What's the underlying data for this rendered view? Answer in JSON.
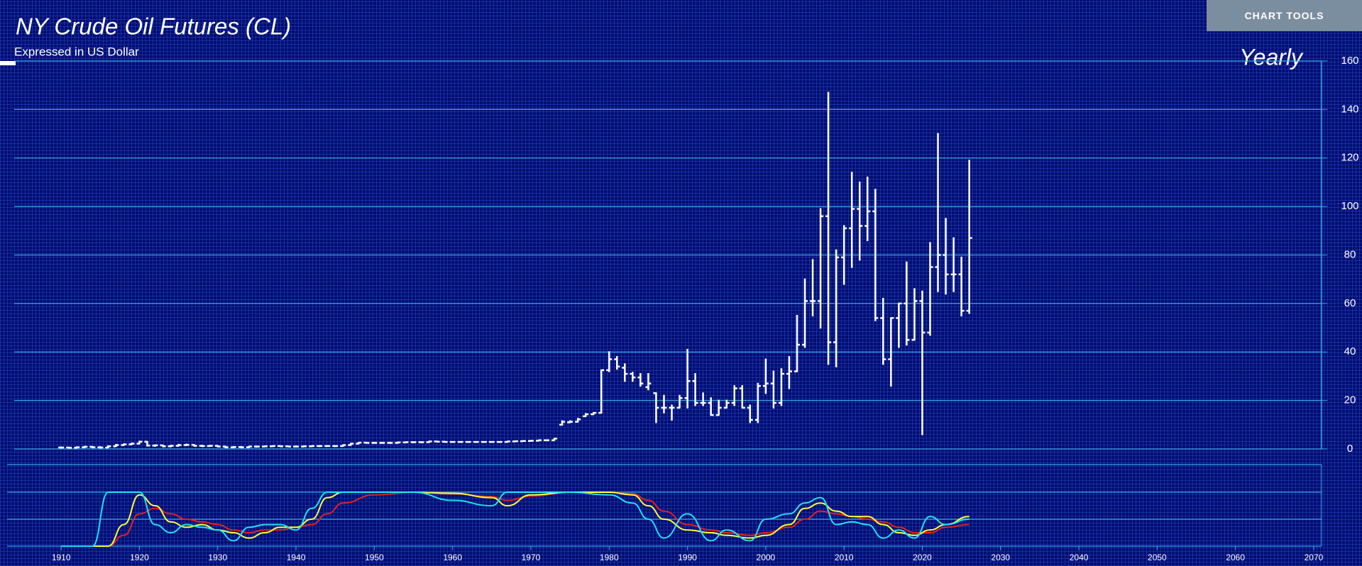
{
  "toolbar": {
    "button": "CHART TOOLS"
  },
  "chart_data": [
    {
      "type": "ohlc",
      "title": "NY Crude Oil Futures (CL)",
      "subtitle": "Expressed in US Dollar",
      "period": "Yearly",
      "color": "#ffffff",
      "x": [
        1910,
        1911,
        1912,
        1913,
        1914,
        1915,
        1916,
        1917,
        1918,
        1919,
        1920,
        1921,
        1922,
        1923,
        1924,
        1925,
        1926,
        1927,
        1928,
        1929,
        1930,
        1931,
        1932,
        1933,
        1934,
        1935,
        1936,
        1937,
        1938,
        1939,
        1940,
        1941,
        1942,
        1943,
        1944,
        1945,
        1946,
        1947,
        1948,
        1949,
        1950,
        1951,
        1952,
        1953,
        1954,
        1955,
        1956,
        1957,
        1958,
        1959,
        1960,
        1961,
        1962,
        1963,
        1964,
        1965,
        1966,
        1967,
        1968,
        1969,
        1970,
        1971,
        1972,
        1973,
        1974,
        1975,
        1976,
        1977,
        1978,
        1979,
        1980,
        1981,
        1982,
        1983,
        1984,
        1985,
        1986,
        1987,
        1988,
        1989,
        1990,
        1991,
        1992,
        1993,
        1994,
        1995,
        1996,
        1997,
        1998,
        1999,
        2000,
        2001,
        2002,
        2003,
        2004,
        2005,
        2006,
        2007,
        2008,
        2009,
        2010,
        2011,
        2012,
        2013,
        2014,
        2015,
        2016,
        2017,
        2018,
        2019,
        2020,
        2021,
        2022,
        2023,
        2024,
        2025,
        2026
      ],
      "open": [
        0.6,
        0.6,
        0.5,
        0.7,
        0.9,
        0.7,
        0.6,
        1.1,
        1.6,
        1.9,
        2.2,
        3,
        1.4,
        1.5,
        1.1,
        1.3,
        1.6,
        1.7,
        1.3,
        1.2,
        1.3,
        1,
        0.7,
        0.8,
        0.7,
        1,
        1,
        1.1,
        1.2,
        1.1,
        1,
        1,
        1.1,
        1.2,
        1.2,
        1.2,
        1.2,
        1.6,
        2.2,
        2.6,
        2.5,
        2.5,
        2.5,
        2.5,
        2.7,
        2.8,
        2.8,
        2.8,
        3.1,
        3,
        2.9,
        2.9,
        2.9,
        2.9,
        2.9,
        2.9,
        2.9,
        2.9,
        3.1,
        3.2,
        3.3,
        3.4,
        3.6,
        3.6,
        10,
        11,
        11.2,
        13.5,
        14.3,
        14.9,
        32.5,
        37,
        33.5,
        31,
        29.5,
        25.5,
        23,
        17,
        17,
        17,
        21,
        28,
        19,
        19,
        14,
        17,
        19,
        25,
        17,
        12,
        26,
        27,
        19,
        31,
        32,
        43,
        61,
        61,
        96,
        44,
        79,
        91,
        99,
        92,
        98,
        54,
        37,
        54,
        60,
        45,
        61,
        48,
        75,
        80,
        72,
        72,
        57
      ],
      "high": [
        0.7,
        0.6,
        0.8,
        1,
        0.9,
        0.8,
        1.2,
        1.8,
        2,
        2.3,
        3.1,
        3,
        1.6,
        1.5,
        1.4,
        1.8,
        1.9,
        1.7,
        1.4,
        1.4,
        1.3,
        1,
        0.9,
        0.9,
        1,
        1,
        1.1,
        1.2,
        1.2,
        1.1,
        1.1,
        1.2,
        1.2,
        1.2,
        1.2,
        1.2,
        1.6,
        2.2,
        2.6,
        2.6,
        2.6,
        2.6,
        2.6,
        2.7,
        2.8,
        2.8,
        2.8,
        3.1,
        3.1,
        3,
        2.9,
        2.9,
        2.9,
        2.9,
        2.9,
        2.9,
        2.9,
        3.1,
        3.2,
        3.3,
        3.4,
        3.6,
        3.6,
        4.3,
        11.5,
        11.5,
        12.5,
        14.5,
        14.9,
        32.5,
        40,
        38,
        35,
        31.5,
        31,
        31,
        23,
        22,
        18,
        22,
        41,
        31,
        23,
        21,
        20,
        20,
        26,
        26,
        18,
        27,
        37,
        32,
        33,
        38,
        55,
        70,
        78,
        99,
        147,
        82,
        92,
        114,
        110,
        112,
        107,
        62,
        54,
        60,
        77,
        66,
        65,
        85,
        130,
        95,
        87,
        79,
        119
      ],
      "low": [
        0.5,
        0.5,
        0.5,
        0.7,
        0.6,
        0.5,
        0.6,
        1.1,
        1.6,
        1.9,
        2.2,
        1.3,
        1.2,
        1,
        1,
        1.3,
        1.5,
        1.2,
        1.1,
        1.2,
        1,
        0.6,
        0.6,
        0.6,
        0.7,
        0.9,
        1,
        1.1,
        1.1,
        1,
        1,
        1,
        1.1,
        1.1,
        1.2,
        1.1,
        1.2,
        1.6,
        2.2,
        2.5,
        2.5,
        2.5,
        2.5,
        2.5,
        2.7,
        2.7,
        2.7,
        2.8,
        3,
        2.9,
        2.9,
        2.9,
        2.9,
        2.9,
        2.9,
        2.9,
        2.9,
        2.9,
        3.1,
        3.2,
        3.3,
        3.4,
        3.6,
        3.6,
        10,
        11,
        11.2,
        13.5,
        14.3,
        14.9,
        32,
        33,
        28,
        28,
        26,
        24.5,
        11,
        15,
        12,
        17,
        17,
        18,
        18,
        14,
        14,
        17,
        18,
        17,
        11,
        11,
        23,
        17,
        18,
        25,
        32,
        42,
        55,
        50,
        35,
        34,
        68,
        75,
        78,
        86,
        53,
        35,
        26,
        42,
        43,
        45,
        6,
        47,
        65,
        64,
        65,
        55,
        56
      ],
      "close": [
        0.6,
        0.5,
        0.7,
        0.9,
        0.7,
        0.6,
        1.1,
        1.6,
        1.9,
        2.2,
        3,
        1.4,
        1.5,
        1.1,
        1.3,
        1.6,
        1.7,
        1.3,
        1.2,
        1.3,
        1,
        0.7,
        0.8,
        0.7,
        1,
        1,
        1.1,
        1.2,
        1.1,
        1,
        1,
        1.1,
        1.2,
        1.2,
        1.2,
        1.2,
        1.6,
        2.2,
        2.6,
        2.5,
        2.5,
        2.5,
        2.5,
        2.7,
        2.8,
        2.8,
        2.8,
        3.1,
        3,
        2.9,
        2.9,
        2.9,
        2.9,
        2.9,
        2.9,
        2.9,
        2.9,
        3.1,
        3.2,
        3.3,
        3.4,
        3.6,
        3.6,
        4.3,
        11.2,
        11.2,
        12.2,
        14.3,
        14.9,
        32.5,
        37,
        34,
        31,
        29.5,
        27,
        27,
        17,
        17,
        17,
        21,
        28,
        19,
        19,
        14,
        17,
        19,
        25,
        17,
        12,
        26,
        27,
        19,
        31,
        32,
        43,
        61,
        61,
        96,
        44,
        79,
        91,
        99,
        92,
        98,
        54,
        37,
        54,
        60,
        45,
        61,
        48,
        75,
        80,
        72,
        72,
        57,
        87
      ],
      "xlim": [
        1904,
        2071
      ],
      "ylim": [
        0,
        160
      ],
      "yticks": [
        0,
        20,
        40,
        60,
        80,
        100,
        120,
        140,
        160
      ],
      "xticks": [
        1910,
        1920,
        1930,
        1940,
        1950,
        1960,
        1970,
        1980,
        1990,
        2000,
        2010,
        2020,
        2030,
        2040,
        2050,
        2060,
        2070
      ],
      "grid": true
    },
    {
      "type": "line",
      "x": [
        1910,
        1914,
        1916,
        1918,
        1920,
        1922,
        1924,
        1926,
        1928,
        1930,
        1932,
        1934,
        1936,
        1938,
        1940,
        1942,
        1944,
        1946,
        1950,
        1955,
        1960,
        1965,
        1967,
        1970,
        1975,
        1980,
        1983,
        1985,
        1987,
        1990,
        1993,
        1995,
        1998,
        2000,
        2003,
        2005,
        2007,
        2009,
        2011,
        2013,
        2015,
        2017,
        2019,
        2021,
        2023,
        2026
      ],
      "ylim": [
        0,
        100
      ],
      "series": [
        {
          "color": "#20e0f0",
          "values": [
            0,
            0,
            100,
            100,
            100,
            40,
            25,
            40,
            35,
            30,
            10,
            35,
            40,
            40,
            30,
            70,
            100,
            100,
            100,
            100,
            85,
            75,
            100,
            100,
            100,
            95,
            80,
            50,
            15,
            60,
            10,
            30,
            10,
            50,
            60,
            80,
            90,
            40,
            45,
            40,
            15,
            30,
            15,
            55,
            40,
            50
          ]
        },
        {
          "color": "#ffff33",
          "values": [
            0,
            0,
            0,
            40,
            95,
            75,
            45,
            35,
            40,
            30,
            25,
            15,
            25,
            35,
            35,
            50,
            90,
            100,
            100,
            100,
            98,
            90,
            75,
            95,
            100,
            100,
            95,
            75,
            50,
            30,
            25,
            20,
            15,
            20,
            40,
            70,
            80,
            65,
            55,
            55,
            40,
            25,
            20,
            30,
            40,
            55
          ]
        },
        {
          "color": "#e8201a",
          "values": [
            0,
            0,
            0,
            20,
            60,
            70,
            60,
            50,
            45,
            40,
            30,
            25,
            30,
            30,
            35,
            40,
            60,
            80,
            95,
            100,
            97,
            92,
            85,
            93,
            100,
            100,
            97,
            85,
            65,
            40,
            30,
            25,
            20,
            25,
            35,
            50,
            65,
            60,
            55,
            50,
            45,
            35,
            25,
            25,
            35,
            40
          ]
        }
      ]
    }
  ]
}
